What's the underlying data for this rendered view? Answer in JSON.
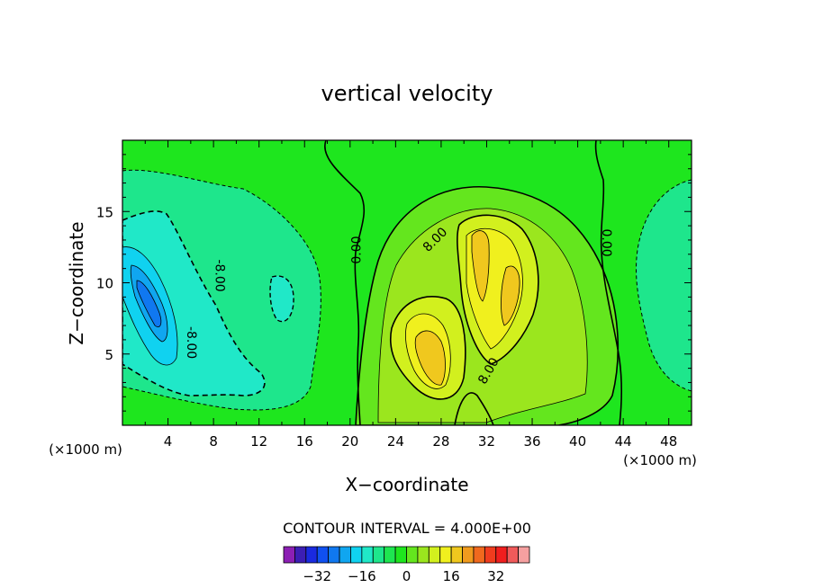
{
  "chart_data": {
    "type": "contour",
    "title": "vertical velocity",
    "xlabel": "X−coordinate",
    "ylabel": "Z−coordinate",
    "x_unit_left": "(×1000 m)",
    "x_unit_right": "(×1000 m)",
    "x_range": [
      0,
      50
    ],
    "y_range": [
      0,
      20
    ],
    "x_ticks": [
      4,
      8,
      12,
      16,
      20,
      24,
      28,
      32,
      36,
      40,
      44,
      48
    ],
    "y_ticks": [
      5,
      10,
      15
    ],
    "contour_interval_label": "CONTOUR INTERVAL = 4.000E+00",
    "contour_interval": 4.0,
    "contour_labels": [
      {
        "text": "0.00",
        "x": 20.6,
        "y": 12.3,
        "rot": -90
      },
      {
        "text": "8.00",
        "x": 27.5,
        "y": 13.0,
        "rot": -45
      },
      {
        "text": "0.00",
        "x": 42.5,
        "y": 12.8,
        "rot": 90
      },
      {
        "text": "-8.00",
        "x": 8.5,
        "y": 10.5,
        "rot": 90
      },
      {
        "text": "-8.00",
        "x": 6.0,
        "y": 5.8,
        "rot": 90
      },
      {
        "text": "8.00",
        "x": 32.2,
        "y": 3.8,
        "rot": -60
      }
    ],
    "colorbar": {
      "ticks": [
        -32,
        -16,
        0,
        16,
        32
      ],
      "tick_labels": [
        "−32",
        "−16",
        "0",
        "16",
        "32"
      ],
      "levels": [
        -40,
        -36,
        -32,
        -28,
        -24,
        -20,
        -16,
        -12,
        -8,
        -4,
        0,
        4,
        8,
        12,
        16,
        20,
        24,
        28,
        32,
        36,
        40
      ],
      "colors": [
        "#8c1fb4",
        "#3c1eb4",
        "#1a2ae0",
        "#1050f0",
        "#1078f0",
        "#10a6f0",
        "#10d2f0",
        "#20e8c8",
        "#1ee68c",
        "#1ee650",
        "#1ee61e",
        "#64e61e",
        "#9be61e",
        "#d2f01e",
        "#f0f01e",
        "#f0c81e",
        "#f09b1e",
        "#f0691e",
        "#f03c1e",
        "#f01e1e",
        "#f05a5a",
        "#f5a0a0"
      ]
    }
  }
}
